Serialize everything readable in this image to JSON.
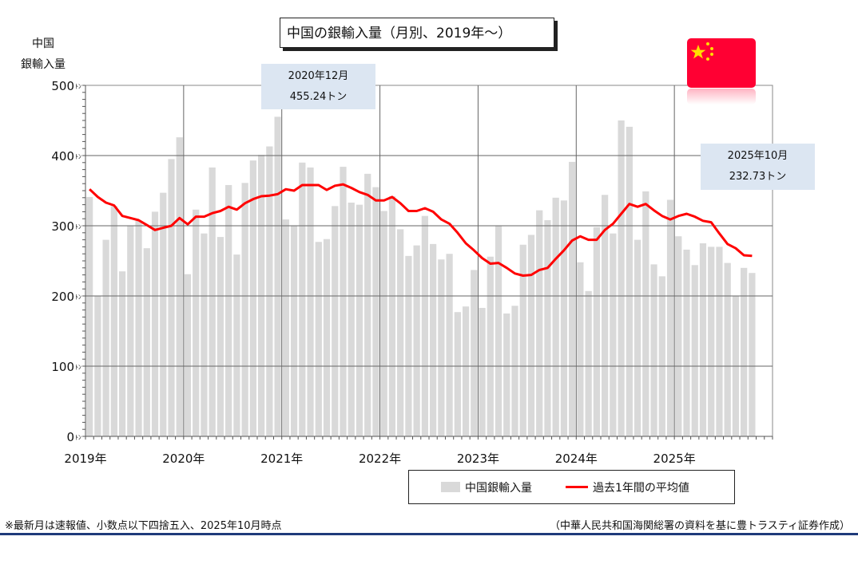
{
  "title": "中国の銀輸入量（月別、2019年～）",
  "yaxis_title_line1": "中国",
  "yaxis_title_line2": "銀輸入量",
  "annotations": [
    {
      "line1": "2020年12月",
      "line2": "455.24トン"
    },
    {
      "line1": "2025年10月",
      "line2": "232.73トン"
    }
  ],
  "legend": {
    "bars": "中国銀輸入量",
    "line": "過去1年間の平均値"
  },
  "footer_left": "※最新月は速報値、小数点以下四捨五入、2025年10月時点",
  "footer_right": "（中華人民共和国海関総署の資料を基に豊トラスティ証券作成）",
  "colors": {
    "bar": "#d9d9d9",
    "line": "#ff0000",
    "annotation_bg": "#dce6f2",
    "flag": "#ff0033",
    "rule": "#1f3a7a"
  },
  "chart_data": {
    "type": "bar",
    "title": "中国の銀輸入量（月別、2019年～）",
    "ylabel": "中国 銀輸入量",
    "ylim": [
      0,
      500
    ],
    "yticks": [
      0,
      100,
      200,
      300,
      400,
      500
    ],
    "ytick_unit": "ﾄﾝ",
    "xticks": [
      "2019年",
      "2020年",
      "2021年",
      "2022年",
      "2023年",
      "2024年",
      "2025年"
    ],
    "start": "2019-01",
    "grid": true,
    "legend_position": "bottom-right",
    "series": [
      {
        "name": "中国銀輸入量",
        "type": "bar",
        "values": [
          341,
          200,
          280,
          328,
          235,
          300,
          307,
          268,
          320,
          347,
          395,
          426,
          231,
          323,
          289,
          383,
          284,
          358,
          259,
          361,
          393,
          401,
          413,
          455.24,
          309,
          300,
          390,
          383,
          277,
          281,
          328,
          384,
          333,
          330,
          374,
          355,
          321,
          342,
          295,
          257,
          272,
          314,
          274,
          252,
          260,
          177,
          185,
          237,
          183,
          256,
          300,
          175,
          186,
          273,
          287,
          322,
          308,
          340,
          336,
          391,
          248,
          207,
          298,
          344,
          289,
          450,
          441,
          280,
          349,
          245,
          228,
          337,
          285,
          266,
          244,
          275,
          270,
          270,
          247,
          200,
          240,
          232.73
        ]
      },
      {
        "name": "過去1年間の平均値",
        "type": "line",
        "values": [
          352,
          341,
          333,
          329,
          314,
          311,
          308,
          301,
          294,
          297,
          300,
          311,
          302,
          313,
          313,
          318,
          321,
          327,
          323,
          332,
          338,
          342,
          343,
          345,
          352,
          350,
          358,
          358,
          358,
          351,
          357,
          359,
          354,
          348,
          344,
          336,
          336,
          341,
          332,
          321,
          321,
          325,
          320,
          309,
          303,
          290,
          275,
          265,
          254,
          246,
          247,
          240,
          232,
          229,
          230,
          237,
          240,
          253,
          265,
          279,
          285,
          280,
          280,
          294,
          303,
          317,
          331,
          327,
          331,
          322,
          314,
          309,
          314,
          317,
          313,
          307,
          305,
          289,
          274,
          268,
          258,
          257
        ]
      }
    ]
  }
}
